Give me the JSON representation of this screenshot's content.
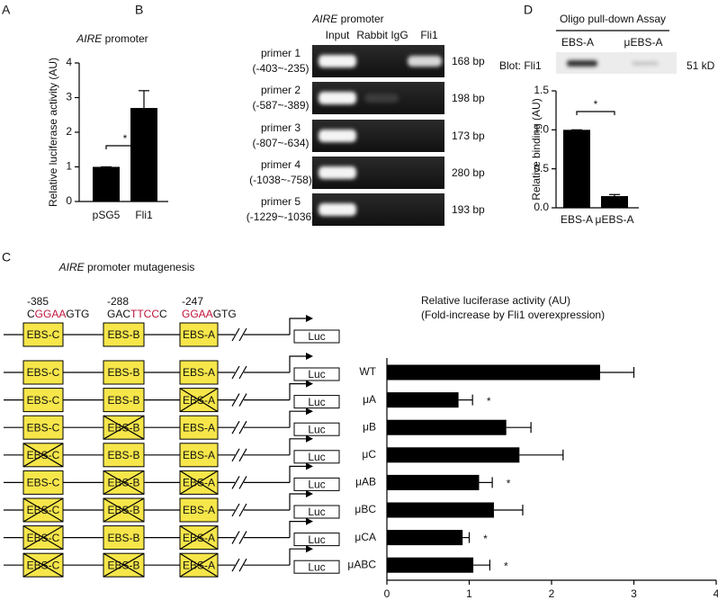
{
  "chart_data": [
    {
      "type": "bar",
      "panel": "A",
      "title_gene": "AIRE",
      "title": "promoter",
      "ylabel": "Relative luciferase activity (AU)",
      "categories": [
        "pSG5",
        "Fli1"
      ],
      "values": [
        1,
        2.7
      ],
      "errors": [
        0,
        0.5
      ],
      "color": "#000000",
      "ylim": [
        0,
        4
      ],
      "yticks": [
        0,
        1,
        2,
        3,
        4
      ],
      "significance": "*"
    },
    {
      "type": "bar",
      "panel": "D",
      "ylabel": "Relative binding (AU)",
      "categories": [
        "EBS-A",
        "μEBS-A"
      ],
      "values": [
        1.0,
        0.15
      ],
      "errors": [
        0,
        0.02
      ],
      "color": "#000000",
      "ylim": [
        0,
        1.5
      ],
      "yticks": [
        {
          "value": 0,
          "label": "0.0"
        },
        {
          "value": 0.5,
          "label": "0.5"
        },
        {
          "value": 1,
          "label": "1.0"
        },
        {
          "value": 1.5,
          "label": "1.5"
        }
      ],
      "significance": "*"
    },
    {
      "type": "barh",
      "panel": "C",
      "title": [
        "Relative luciferase activity (AU)",
        "(Fold-increase by Fli1 overexpression)"
      ],
      "categories": [
        "WT",
        "μA",
        "μB",
        "μC",
        "μAB",
        "μBC",
        "μCA",
        "μABC"
      ],
      "values": [
        2.59,
        0.87,
        1.45,
        1.61,
        1.12,
        1.3,
        0.92,
        1.05
      ],
      "errors": [
        0.41,
        0.17,
        0.3,
        0.53,
        0.16,
        0.35,
        0.08,
        0.2
      ],
      "significance": [
        null,
        "*",
        null,
        null,
        "*",
        null,
        "*",
        "*"
      ],
      "color": "#000000",
      "xlim": [
        0,
        4
      ],
      "xticks": [
        0,
        1,
        2,
        3,
        4
      ]
    }
  ],
  "gel": {
    "panel": "B",
    "title_gene": "AIRE",
    "title": "promoter",
    "lanes": [
      "Input",
      "Rabbit IgG",
      "Fli1"
    ],
    "rows": [
      {
        "primer": "primer 1",
        "range": "(-403~-235)",
        "size": "168 bp"
      },
      {
        "primer": "primer 2",
        "range": "(-587~-389)",
        "size": "198 bp"
      },
      {
        "primer": "primer 3",
        "range": "(-807~-634)",
        "size": "173 bp"
      },
      {
        "primer": "primer 4",
        "range": "(-1038~-758)",
        "size": "280 bp"
      },
      {
        "primer": "primer 5",
        "range": "(-1229~-1036)",
        "size": "193 bp"
      }
    ]
  },
  "pulldown": {
    "title": "Oligo pull-down Assay",
    "lanes": [
      "EBS-A",
      "μEBS-A"
    ],
    "blot": "Blot: Fli1",
    "size": "51 kD"
  },
  "mutagenesis": {
    "title_gene": "AIRE",
    "title": "promoter mutagenesis",
    "sites": [
      {
        "pos": "-385",
        "seq": [
          {
            "t": "C"
          },
          {
            "t": "GGAA",
            "color": "#c0143c"
          },
          {
            "t": "GTG"
          }
        ]
      },
      {
        "pos": "-288",
        "seq": [
          {
            "t": "GAC"
          },
          {
            "t": "TTCC",
            "color": "#c0143c"
          },
          {
            "t": "C"
          }
        ]
      },
      {
        "pos": "-247",
        "seq": [
          {
            "t": "GGAA",
            "color": "#c0143c"
          },
          {
            "t": "GTG"
          }
        ]
      }
    ],
    "elements": [
      "EBS-C",
      "EBS-B",
      "EBS-A"
    ],
    "reporter": "Luc",
    "mutated": [
      [
        false,
        false,
        false
      ],
      [
        false,
        false,
        true
      ],
      [
        false,
        true,
        false
      ],
      [
        true,
        false,
        false
      ],
      [
        false,
        true,
        true
      ],
      [
        true,
        true,
        false
      ],
      [
        true,
        false,
        true
      ],
      [
        true,
        true,
        true
      ]
    ]
  }
}
